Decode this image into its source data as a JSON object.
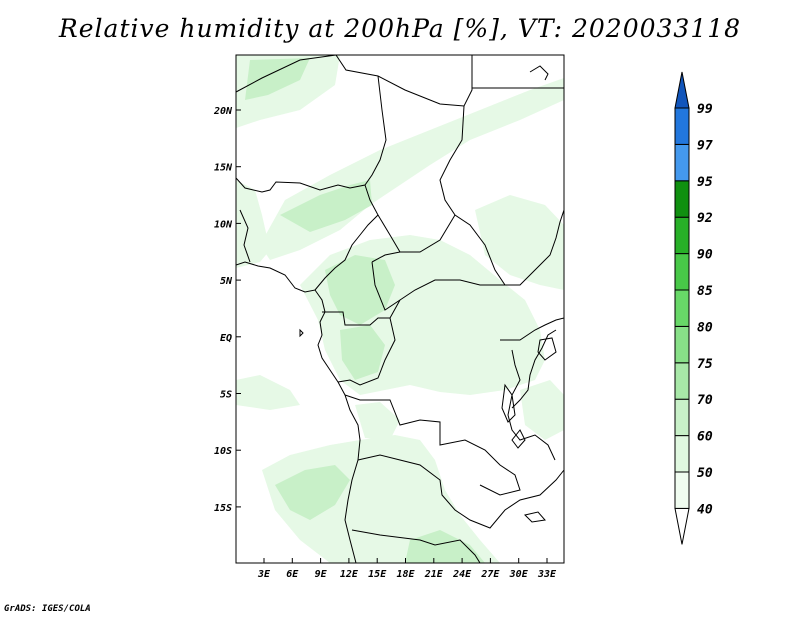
{
  "title": "Relative humidity at 200hPa [%], VT: 2020033118",
  "credit": "GrADS: IGES/COLA",
  "map": {
    "lon_ticks": [
      "3E",
      "6E",
      "9E",
      "12E",
      "15E",
      "18E",
      "21E",
      "24E",
      "27E",
      "30E",
      "33E"
    ],
    "lat_ticks": [
      "20N",
      "15N",
      "10N",
      "5N",
      "EQ",
      "5S",
      "10S",
      "15S"
    ]
  },
  "colorbar": {
    "levels": [
      "40",
      "50",
      "60",
      "70",
      "75",
      "80",
      "85",
      "90",
      "92",
      "95",
      "97",
      "99"
    ],
    "colors": [
      "#f0fcf0",
      "#e0f8e0",
      "#c8f0c8",
      "#a8e8a8",
      "#88e088",
      "#68d868",
      "#48c848",
      "#28b028",
      "#109010",
      "#4499ee",
      "#2277dd",
      "#1155bb"
    ]
  },
  "field_colors": {
    "light": "#e6f9e6",
    "mid": "#c8f0c8",
    "dark": "#a8e8a8"
  }
}
